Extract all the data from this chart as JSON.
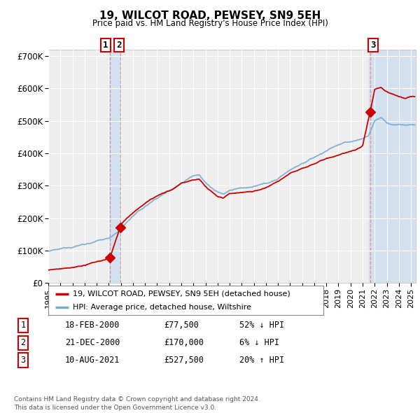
{
  "title": "19, WILCOT ROAD, PEWSEY, SN9 5EH",
  "subtitle": "Price paid vs. HM Land Registry's House Price Index (HPI)",
  "ylim": [
    0,
    720000
  ],
  "xlim_start": 1995.0,
  "xlim_end": 2025.4,
  "yticks": [
    0,
    100000,
    200000,
    300000,
    400000,
    500000,
    600000,
    700000
  ],
  "ytick_labels": [
    "£0",
    "£100K",
    "£200K",
    "£300K",
    "£400K",
    "£500K",
    "£600K",
    "£700K"
  ],
  "xticks": [
    1995,
    1996,
    1997,
    1998,
    1999,
    2000,
    2001,
    2002,
    2003,
    2004,
    2005,
    2006,
    2007,
    2008,
    2009,
    2010,
    2011,
    2012,
    2013,
    2014,
    2015,
    2016,
    2017,
    2018,
    2019,
    2020,
    2021,
    2022,
    2023,
    2024,
    2025
  ],
  "background_color": "#ffffff",
  "plot_bg_color": "#eeeeee",
  "grid_color": "#ffffff",
  "transactions": [
    {
      "date_year": 2000.12,
      "price": 77500,
      "label": "1"
    },
    {
      "date_year": 2000.97,
      "price": 170000,
      "label": "2"
    },
    {
      "date_year": 2021.61,
      "price": 527500,
      "label": "3"
    }
  ],
  "transaction_color": "#cc0000",
  "hpi_line_color": "#7aaad0",
  "property_line_color": "#cc0000",
  "legend_label_property": "19, WILCOT ROAD, PEWSEY, SN9 5EH (detached house)",
  "legend_label_hpi": "HPI: Average price, detached house, Wiltshire",
  "table_rows": [
    {
      "num": "1",
      "date": "18-FEB-2000",
      "price": "£77,500",
      "hpi": "52% ↓ HPI"
    },
    {
      "num": "2",
      "date": "21-DEC-2000",
      "price": "£170,000",
      "hpi": "6% ↓ HPI"
    },
    {
      "num": "3",
      "date": "10-AUG-2021",
      "price": "£527,500",
      "hpi": "20% ↑ HPI"
    }
  ],
  "footer": "Contains HM Land Registry data © Crown copyright and database right 2024.\nThis data is licensed under the Open Government Licence v3.0.",
  "shaded_region_1_start": 2000.0,
  "shaded_region_1_end": 2001.0,
  "shaded_region_2_start": 2021.5,
  "shaded_region_2_end": 2025.4
}
